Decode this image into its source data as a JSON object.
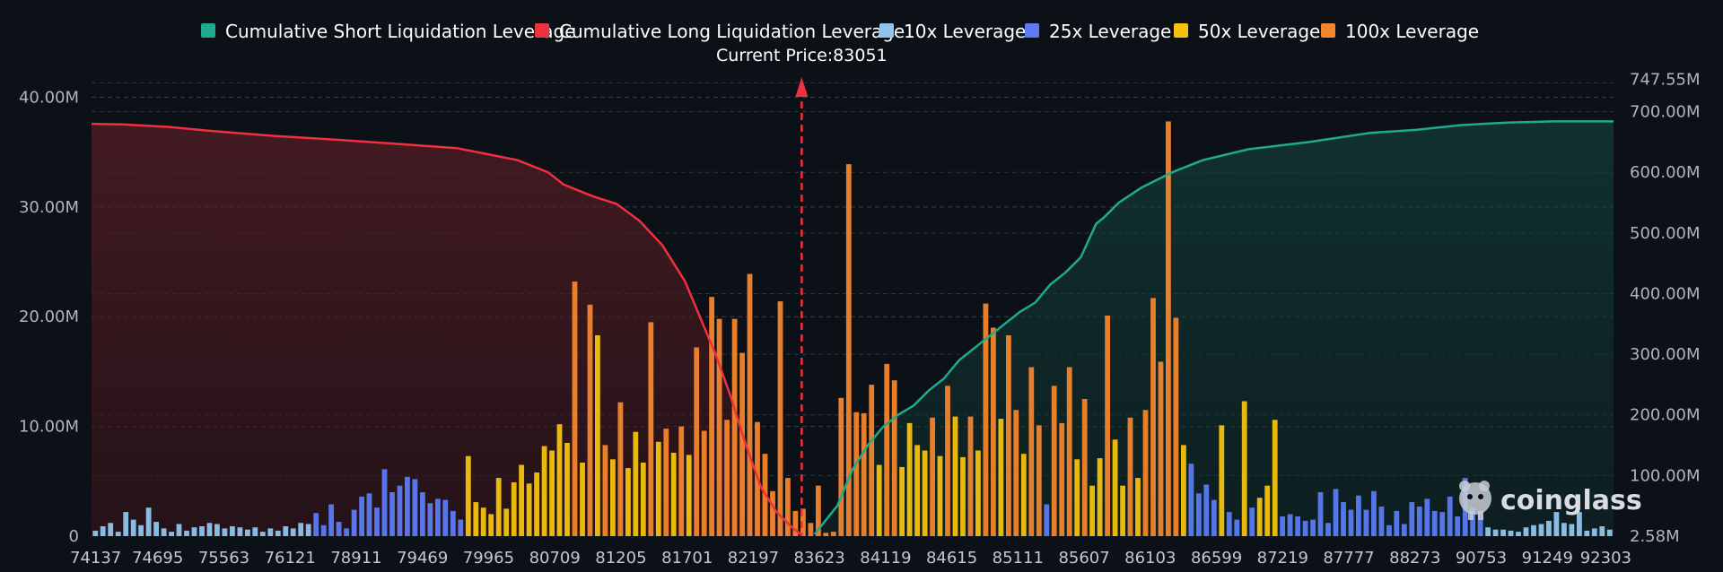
{
  "chart_data": {
    "type": "bar",
    "subtype": "liquidation-heatmap-histogram",
    "current_price_label": "Current Price:83051",
    "current_price": 83051,
    "legend": [
      {
        "name": "Cumulative Short Liquidation Leverage",
        "color": "#1fa98e"
      },
      {
        "name": "Cumulative Long Liquidation Leverage",
        "color": "#f0303f"
      },
      {
        "name": "10x Leverage",
        "color": "#8ec5ee"
      },
      {
        "name": "25x Leverage",
        "color": "#5b7bf2"
      },
      {
        "name": "50x Leverage",
        "color": "#f4c20d"
      },
      {
        "name": "100x Leverage",
        "color": "#f2852d"
      }
    ],
    "y_left": {
      "ticks": [
        "0",
        "10.00M",
        "20.00M",
        "30.00M",
        "40.00M"
      ],
      "values": [
        0,
        10,
        20,
        30,
        40
      ],
      "range": [
        0,
        42
      ],
      "unit": "M"
    },
    "y_right": {
      "ticks": [
        "2.58M",
        "100.00M",
        "200.00M",
        "300.00M",
        "400.00M",
        "500.00M",
        "600.00M",
        "700.00M",
        "747.55M"
      ],
      "values": [
        2.58,
        100,
        200,
        300,
        400,
        500,
        600,
        700,
        747.55
      ],
      "range": [
        0,
        760
      ],
      "unit": "M"
    },
    "x_ticks": [
      "74137",
      "74695",
      "75563",
      "76121",
      "78911",
      "79469",
      "79965",
      "80709",
      "81205",
      "81701",
      "82197",
      "83623",
      "84119",
      "84615",
      "85111",
      "85607",
      "86103",
      "86599",
      "87219",
      "87777",
      "88273",
      "90753",
      "91249",
      "92303"
    ],
    "watermark": "coinglass",
    "bars": [
      [
        0.5,
        "10x"
      ],
      [
        0.9,
        "10x"
      ],
      [
        1.2,
        "10x"
      ],
      [
        0.4,
        "10x"
      ],
      [
        2.2,
        "10x"
      ],
      [
        1.5,
        "10x"
      ],
      [
        1.0,
        "10x"
      ],
      [
        2.6,
        "10x"
      ],
      [
        1.3,
        "10x"
      ],
      [
        0.7,
        "10x"
      ],
      [
        0.4,
        "10x"
      ],
      [
        1.1,
        "10x"
      ],
      [
        0.5,
        "10x"
      ],
      [
        0.8,
        "10x"
      ],
      [
        0.9,
        "10x"
      ],
      [
        1.2,
        "10x"
      ],
      [
        1.1,
        "10x"
      ],
      [
        0.7,
        "10x"
      ],
      [
        0.9,
        "10x"
      ],
      [
        0.8,
        "10x"
      ],
      [
        0.6,
        "10x"
      ],
      [
        0.8,
        "10x"
      ],
      [
        0.4,
        "10x"
      ],
      [
        0.7,
        "10x"
      ],
      [
        0.5,
        "10x"
      ],
      [
        0.9,
        "10x"
      ],
      [
        0.7,
        "10x"
      ],
      [
        1.2,
        "10x"
      ],
      [
        1.1,
        "10x"
      ],
      [
        2.1,
        "25x"
      ],
      [
        1.0,
        "25x"
      ],
      [
        2.9,
        "25x"
      ],
      [
        1.3,
        "25x"
      ],
      [
        0.7,
        "25x"
      ],
      [
        2.4,
        "25x"
      ],
      [
        3.6,
        "25x"
      ],
      [
        3.9,
        "25x"
      ],
      [
        2.6,
        "25x"
      ],
      [
        6.1,
        "25x"
      ],
      [
        4.0,
        "25x"
      ],
      [
        4.6,
        "25x"
      ],
      [
        5.4,
        "25x"
      ],
      [
        5.2,
        "25x"
      ],
      [
        4.0,
        "25x"
      ],
      [
        3.0,
        "25x"
      ],
      [
        3.4,
        "25x"
      ],
      [
        3.3,
        "25x"
      ],
      [
        2.3,
        "25x"
      ],
      [
        1.5,
        "25x"
      ],
      [
        7.3,
        "50x"
      ],
      [
        3.1,
        "50x"
      ],
      [
        2.6,
        "50x"
      ],
      [
        2.0,
        "50x"
      ],
      [
        5.3,
        "50x"
      ],
      [
        2.5,
        "50x"
      ],
      [
        4.9,
        "50x"
      ],
      [
        6.5,
        "50x"
      ],
      [
        4.8,
        "50x"
      ],
      [
        5.8,
        "50x"
      ],
      [
        8.2,
        "50x"
      ],
      [
        7.8,
        "50x"
      ],
      [
        10.2,
        "50x"
      ],
      [
        8.5,
        "50x"
      ],
      [
        23.2,
        "100x"
      ],
      [
        6.7,
        "50x"
      ],
      [
        21.1,
        "100x"
      ],
      [
        18.3,
        "50x"
      ],
      [
        8.3,
        "100x"
      ],
      [
        7.0,
        "50x"
      ],
      [
        12.2,
        "100x"
      ],
      [
        6.2,
        "50x"
      ],
      [
        9.5,
        "50x"
      ],
      [
        6.7,
        "50x"
      ],
      [
        19.5,
        "100x"
      ],
      [
        8.6,
        "50x"
      ],
      [
        9.8,
        "100x"
      ],
      [
        7.6,
        "50x"
      ],
      [
        10.0,
        "100x"
      ],
      [
        7.4,
        "50x"
      ],
      [
        17.2,
        "100x"
      ],
      [
        9.6,
        "100x"
      ],
      [
        21.8,
        "100x"
      ],
      [
        19.8,
        "100x"
      ],
      [
        10.6,
        "100x"
      ],
      [
        19.8,
        "100x"
      ],
      [
        16.7,
        "100x"
      ],
      [
        23.9,
        "100x"
      ],
      [
        10.4,
        "100x"
      ],
      [
        7.5,
        "100x"
      ],
      [
        4.1,
        "100x"
      ],
      [
        21.4,
        "100x"
      ],
      [
        5.3,
        "100x"
      ],
      [
        2.3,
        "100x"
      ],
      [
        2.5,
        "100x"
      ],
      [
        1.2,
        "100x"
      ],
      [
        4.6,
        "100x"
      ],
      [
        0.3,
        "100x"
      ],
      [
        0.4,
        "100x"
      ],
      [
        12.6,
        "100x"
      ],
      [
        33.9,
        "100x"
      ],
      [
        11.3,
        "100x"
      ],
      [
        11.2,
        "100x"
      ],
      [
        13.8,
        "100x"
      ],
      [
        6.5,
        "50x"
      ],
      [
        15.7,
        "100x"
      ],
      [
        14.2,
        "100x"
      ],
      [
        6.3,
        "50x"
      ],
      [
        10.3,
        "50x"
      ],
      [
        8.3,
        "50x"
      ],
      [
        7.8,
        "50x"
      ],
      [
        10.8,
        "100x"
      ],
      [
        7.3,
        "50x"
      ],
      [
        13.7,
        "100x"
      ],
      [
        10.9,
        "50x"
      ],
      [
        7.2,
        "50x"
      ],
      [
        10.9,
        "100x"
      ],
      [
        7.8,
        "50x"
      ],
      [
        21.2,
        "100x"
      ],
      [
        19.0,
        "100x"
      ],
      [
        10.7,
        "50x"
      ],
      [
        18.3,
        "100x"
      ],
      [
        11.5,
        "100x"
      ],
      [
        7.5,
        "50x"
      ],
      [
        15.4,
        "100x"
      ],
      [
        10.1,
        "100x"
      ],
      [
        2.9,
        "25x"
      ],
      [
        13.7,
        "100x"
      ],
      [
        10.3,
        "100x"
      ],
      [
        15.4,
        "100x"
      ],
      [
        7.0,
        "50x"
      ],
      [
        12.5,
        "100x"
      ],
      [
        4.6,
        "50x"
      ],
      [
        7.1,
        "50x"
      ],
      [
        20.1,
        "100x"
      ],
      [
        8.8,
        "50x"
      ],
      [
        4.6,
        "50x"
      ],
      [
        10.8,
        "100x"
      ],
      [
        5.3,
        "50x"
      ],
      [
        11.5,
        "100x"
      ],
      [
        21.7,
        "100x"
      ],
      [
        15.9,
        "100x"
      ],
      [
        37.8,
        "100x"
      ],
      [
        19.9,
        "100x"
      ],
      [
        8.3,
        "50x"
      ],
      [
        6.6,
        "25x"
      ],
      [
        3.9,
        "25x"
      ],
      [
        4.7,
        "25x"
      ],
      [
        3.3,
        "25x"
      ],
      [
        10.1,
        "50x"
      ],
      [
        2.2,
        "25x"
      ],
      [
        1.5,
        "25x"
      ],
      [
        12.3,
        "50x"
      ],
      [
        2.6,
        "25x"
      ],
      [
        3.5,
        "50x"
      ],
      [
        4.6,
        "50x"
      ],
      [
        10.6,
        "50x"
      ],
      [
        1.8,
        "25x"
      ],
      [
        2.0,
        "25x"
      ],
      [
        1.8,
        "25x"
      ],
      [
        1.4,
        "25x"
      ],
      [
        1.5,
        "25x"
      ],
      [
        4.0,
        "25x"
      ],
      [
        1.2,
        "25x"
      ],
      [
        4.3,
        "25x"
      ],
      [
        3.1,
        "25x"
      ],
      [
        2.4,
        "25x"
      ],
      [
        3.7,
        "25x"
      ],
      [
        2.4,
        "25x"
      ],
      [
        4.1,
        "25x"
      ],
      [
        2.7,
        "25x"
      ],
      [
        1.0,
        "25x"
      ],
      [
        2.3,
        "25x"
      ],
      [
        1.1,
        "25x"
      ],
      [
        3.1,
        "25x"
      ],
      [
        2.7,
        "25x"
      ],
      [
        3.4,
        "25x"
      ],
      [
        2.3,
        "25x"
      ],
      [
        2.2,
        "25x"
      ],
      [
        3.6,
        "25x"
      ],
      [
        1.8,
        "25x"
      ],
      [
        5.3,
        "25x"
      ],
      [
        2.6,
        "25x"
      ],
      [
        2.3,
        "25x"
      ],
      [
        0.8,
        "10x"
      ],
      [
        0.6,
        "10x"
      ],
      [
        0.6,
        "10x"
      ],
      [
        0.5,
        "10x"
      ],
      [
        0.4,
        "10x"
      ],
      [
        0.8,
        "10x"
      ],
      [
        1.0,
        "10x"
      ],
      [
        1.1,
        "10x"
      ],
      [
        1.4,
        "10x"
      ],
      [
        2.2,
        "10x"
      ],
      [
        1.2,
        "10x"
      ],
      [
        1.1,
        "10x"
      ],
      [
        2.2,
        "10x"
      ],
      [
        0.5,
        "10x"
      ],
      [
        0.7,
        "10x"
      ],
      [
        0.9,
        "10x"
      ],
      [
        0.6,
        "10x"
      ]
    ],
    "long_cumulative": [
      [
        0,
        680
      ],
      [
        0.02,
        679
      ],
      [
        0.05,
        675
      ],
      [
        0.08,
        668
      ],
      [
        0.12,
        660
      ],
      [
        0.16,
        654
      ],
      [
        0.2,
        647
      ],
      [
        0.24,
        640
      ],
      [
        0.26,
        630
      ],
      [
        0.28,
        620
      ],
      [
        0.3,
        600
      ],
      [
        0.31,
        580
      ],
      [
        0.315,
        575
      ],
      [
        0.33,
        560
      ],
      [
        0.345,
        548
      ],
      [
        0.36,
        520
      ],
      [
        0.375,
        480
      ],
      [
        0.39,
        420
      ],
      [
        0.4,
        360
      ],
      [
        0.41,
        300
      ],
      [
        0.42,
        230
      ],
      [
        0.43,
        150
      ],
      [
        0.44,
        80
      ],
      [
        0.45,
        40
      ],
      [
        0.46,
        15
      ],
      [
        0.466,
        3
      ]
    ],
    "short_cumulative": [
      [
        0.475,
        3
      ],
      [
        0.49,
        50
      ],
      [
        0.5,
        110
      ],
      [
        0.51,
        150
      ],
      [
        0.52,
        180
      ],
      [
        0.53,
        200
      ],
      [
        0.54,
        215
      ],
      [
        0.55,
        240
      ],
      [
        0.56,
        260
      ],
      [
        0.57,
        290
      ],
      [
        0.58,
        310
      ],
      [
        0.6,
        350
      ],
      [
        0.61,
        370
      ],
      [
        0.62,
        385
      ],
      [
        0.63,
        415
      ],
      [
        0.64,
        435
      ],
      [
        0.65,
        460
      ],
      [
        0.66,
        515
      ],
      [
        0.665,
        525
      ],
      [
        0.675,
        550
      ],
      [
        0.69,
        575
      ],
      [
        0.71,
        600
      ],
      [
        0.73,
        620
      ],
      [
        0.76,
        638
      ],
      [
        0.8,
        650
      ],
      [
        0.84,
        665
      ],
      [
        0.87,
        670
      ],
      [
        0.9,
        678
      ],
      [
        0.93,
        682
      ],
      [
        0.96,
        684
      ],
      [
        1.0,
        684
      ]
    ]
  }
}
